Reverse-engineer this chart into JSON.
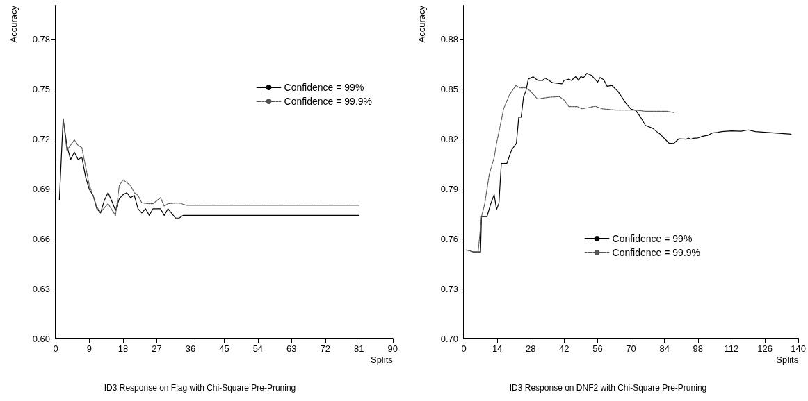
{
  "chart_data": [
    {
      "type": "line",
      "title": "ID3 Response on Flag with Chi-Square Pre-Pruning",
      "xlabel": "Splits",
      "ylabel": "Accuracy",
      "xlim": [
        0,
        90
      ],
      "xticks": [
        0,
        9,
        18,
        27,
        36,
        45,
        54,
        63,
        72,
        81,
        90
      ],
      "ylim": [
        0.6,
        0.8
      ],
      "yticks": [
        {
          "value": 0.6,
          "label": "0.60"
        },
        {
          "value": 0.63,
          "label": "0.63"
        },
        {
          "value": 0.66,
          "label": "0.66"
        },
        {
          "value": 0.69,
          "label": "0.69"
        },
        {
          "value": 0.72,
          "label": "0.72"
        },
        {
          "value": 0.75,
          "label": "0.75"
        },
        {
          "value": 0.78,
          "label": "0.78"
        }
      ],
      "grid": false,
      "legend": "top right",
      "marker": "none",
      "series": [
        {
          "name": "Confidence = 99%",
          "color": "#000000",
          "line_style": "solid",
          "x": [
            1,
            2,
            3,
            4,
            5,
            6,
            7,
            8,
            9,
            10,
            11,
            12,
            13,
            14,
            15,
            16,
            17,
            18,
            19,
            20,
            21,
            22,
            23,
            24,
            25,
            26,
            27,
            28,
            29,
            30,
            32,
            33,
            34,
            81
          ],
          "values": [
            0.6835,
            0.732,
            0.716,
            0.7075,
            0.712,
            0.7075,
            0.709,
            0.697,
            0.6896,
            0.686,
            0.678,
            0.6755,
            0.683,
            0.6876,
            0.6825,
            0.677,
            0.684,
            0.6864,
            0.6876,
            0.6846,
            0.686,
            0.678,
            0.6755,
            0.678,
            0.674,
            0.678,
            0.678,
            0.678,
            0.674,
            0.678,
            0.6724,
            0.6724,
            0.674,
            0.674
          ]
        },
        {
          "name": "Confidence = 99.9%",
          "color": "#555555",
          "line_style": "dotted",
          "x": [
            2,
            3,
            5,
            6,
            7,
            8,
            9,
            10,
            11,
            12,
            14,
            16,
            17,
            18,
            20,
            21,
            22,
            23,
            25,
            26,
            28,
            29,
            30,
            32,
            33,
            35,
            81
          ],
          "values": [
            0.732,
            0.713,
            0.7193,
            0.716,
            0.7147,
            0.7033,
            0.692,
            0.686,
            0.679,
            0.676,
            0.681,
            0.674,
            0.692,
            0.6953,
            0.692,
            0.6876,
            0.686,
            0.6815,
            0.681,
            0.681,
            0.6846,
            0.6795,
            0.681,
            0.6814,
            0.6814,
            0.68,
            0.68
          ]
        }
      ]
    },
    {
      "type": "line",
      "title": "ID3 Response on DNF2 with Chi-Square Pre-Pruning",
      "xlabel": "Splits",
      "ylabel": "Accuracy",
      "xlim": [
        0,
        140
      ],
      "xticks": [
        0,
        14,
        28,
        42,
        56,
        70,
        84,
        98,
        112,
        126,
        140
      ],
      "ylim": [
        0.7,
        0.9
      ],
      "yticks": [
        {
          "value": 0.7,
          "label": "0.70"
        },
        {
          "value": 0.73,
          "label": "0.73"
        },
        {
          "value": 0.76,
          "label": "0.76"
        },
        {
          "value": 0.79,
          "label": "0.79"
        },
        {
          "value": 0.82,
          "label": "0.82"
        },
        {
          "value": 0.85,
          "label": "0.85"
        },
        {
          "value": 0.88,
          "label": "0.88"
        }
      ],
      "grid": false,
      "legend": "bottom right",
      "marker": "none",
      "series": [
        {
          "name": "Confidence = 99%",
          "color": "#000000",
          "line_style": "solid",
          "x": [
            1,
            2,
            4,
            7,
            7.4,
            9.7,
            11.2,
            12.7,
            13.7,
            14.7,
            15.7,
            18,
            20,
            22,
            23,
            24,
            25,
            26,
            27,
            29,
            31,
            33,
            34,
            37,
            41,
            42,
            44,
            45,
            47,
            48,
            49,
            50,
            51.5,
            53.5,
            56,
            57,
            58.5,
            60,
            62,
            64.6,
            68,
            70,
            72,
            74,
            76,
            79,
            81,
            82,
            86,
            88,
            90,
            93,
            94,
            95,
            96,
            98,
            100,
            102,
            104,
            106,
            108,
            112,
            116,
            119,
            122,
            130,
            137
          ],
          "values": [
            0.7532,
            0.753,
            0.752,
            0.752,
            0.7733,
            0.7733,
            0.7806,
            0.7865,
            0.7775,
            0.7813,
            0.8052,
            0.8052,
            0.8133,
            0.8172,
            0.833,
            0.833,
            0.8452,
            0.8488,
            0.8558,
            0.8572,
            0.855,
            0.855,
            0.8565,
            0.8537,
            0.853,
            0.855,
            0.8558,
            0.855,
            0.8575,
            0.855,
            0.8575,
            0.8565,
            0.8593,
            0.858,
            0.854,
            0.8568,
            0.8555,
            0.8515,
            0.852,
            0.8483,
            0.841,
            0.8378,
            0.837,
            0.8329,
            0.828,
            0.8263,
            0.824,
            0.823,
            0.8172,
            0.8174,
            0.82,
            0.8197,
            0.8204,
            0.8197,
            0.8203,
            0.8205,
            0.8215,
            0.822,
            0.8235,
            0.8238,
            0.8243,
            0.8247,
            0.8245,
            0.8253,
            0.8243,
            0.8235,
            0.8228
          ]
        },
        {
          "name": "Confidence = 99.9%",
          "color": "#555555",
          "line_style": "dotted",
          "x": [
            1,
            2,
            4,
            6,
            7.4,
            8.7,
            10.7,
            12.7,
            13.7,
            16.7,
            19.2,
            21.8,
            23.3,
            25.8,
            27.8,
            30.8,
            36,
            40,
            42,
            44,
            47.5,
            49.5,
            55,
            58,
            64,
            72,
            76,
            85,
            88
          ],
          "values": [
            0.7532,
            0.753,
            0.752,
            0.752,
            0.7733,
            0.7806,
            0.799,
            0.8087,
            0.8172,
            0.8382,
            0.8467,
            0.852,
            0.8506,
            0.8506,
            0.8488,
            0.8439,
            0.845,
            0.8453,
            0.8432,
            0.8393,
            0.8393,
            0.838,
            0.8395,
            0.838,
            0.8372,
            0.8372,
            0.8365,
            0.8365,
            0.8357
          ]
        }
      ]
    }
  ]
}
